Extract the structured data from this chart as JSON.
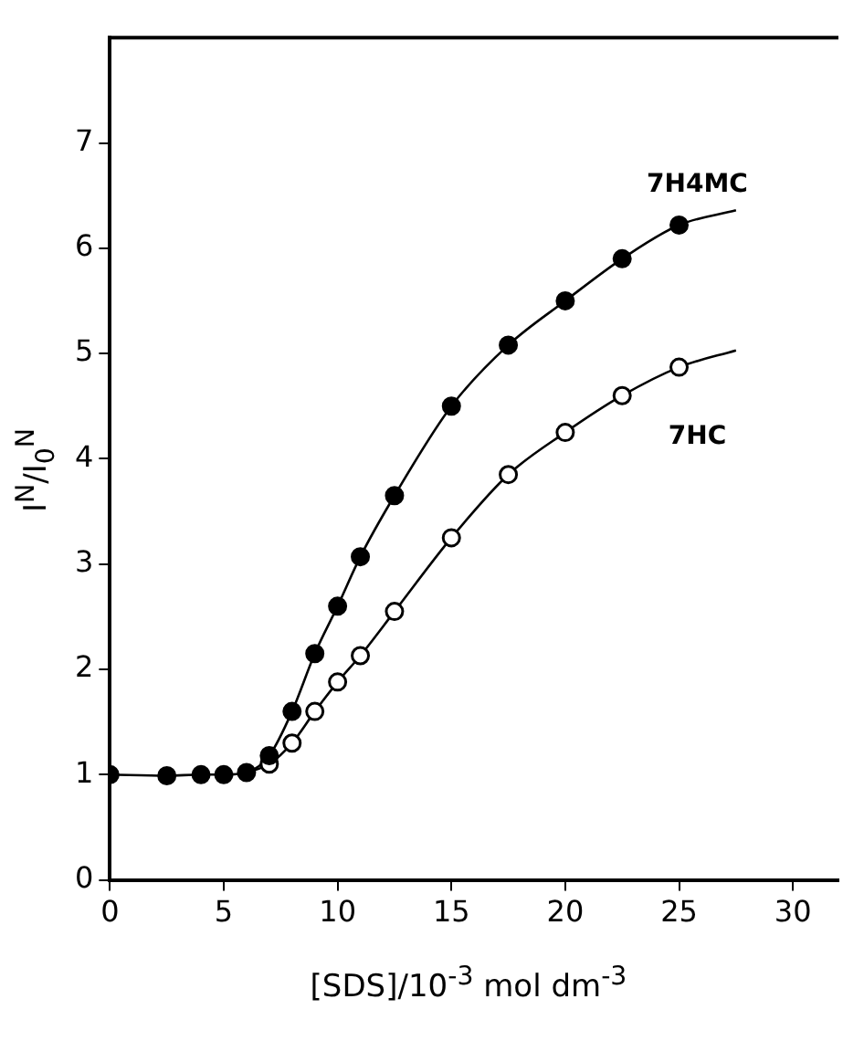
{
  "chart_data": {
    "type": "scatter",
    "xlabel": "[SDS]/10$^{-3}$ mol dm$^{-3}$",
    "ylabel": "I$^{N}$/I$_{0}$$^{N}$",
    "xlim": [
      0,
      32
    ],
    "ylim": [
      0,
      8
    ],
    "xticks": [
      0,
      5,
      10,
      15,
      20,
      25,
      30
    ],
    "yticks": [
      0,
      1,
      2,
      3,
      4,
      5,
      6,
      7
    ],
    "grid": false,
    "legend": false,
    "marker": "circle",
    "series": [
      {
        "name": "7H4MC",
        "color": "#000000",
        "x": [
          0,
          2.5,
          4,
          5,
          6,
          7,
          8,
          9,
          10,
          11,
          12.5,
          15,
          17.5,
          20,
          22.5,
          25
        ],
        "values": [
          1,
          0.99,
          1,
          1,
          1.02,
          1.18,
          1.6,
          2.15,
          2.6,
          3.07,
          3.65,
          4.5,
          5.08,
          5.5,
          5.9,
          6.22
        ]
      },
      {
        "name": "7HC",
        "color": "#ffffff",
        "x": [
          7,
          8,
          9,
          10,
          11,
          12.5,
          15,
          17.5,
          20,
          22.5,
          25
        ],
        "values": [
          1.1,
          1.3,
          1.6,
          1.88,
          2.13,
          2.55,
          3.25,
          3.85,
          4.25,
          4.6,
          4.87
        ]
      },
      {
        "type": "line",
        "color": "#000000",
        "marker": "none",
        "line_style": "solid",
        "x": [
          0,
          2.5,
          4,
          5,
          6,
          7,
          8,
          9,
          10,
          11,
          12.5,
          15,
          17.5,
          20,
          22.5,
          25,
          27.5
        ],
        "values": [
          1,
          0.99,
          1,
          1,
          1.02,
          1.18,
          1.6,
          2.15,
          2.6,
          3.07,
          3.65,
          4.5,
          5.08,
          5.5,
          5.9,
          6.22,
          6.36
        ]
      },
      {
        "type": "line",
        "color": "#000000",
        "marker": "none",
        "line_style": "solid",
        "x": [
          6,
          7,
          8,
          9,
          10,
          11,
          12.5,
          15,
          17.5,
          20,
          22.5,
          25,
          27.5
        ],
        "values": [
          1.02,
          1.1,
          1.3,
          1.6,
          1.88,
          2.13,
          2.55,
          3.25,
          3.85,
          4.25,
          4.6,
          4.87,
          5.03
        ]
      }
    ]
  }
}
